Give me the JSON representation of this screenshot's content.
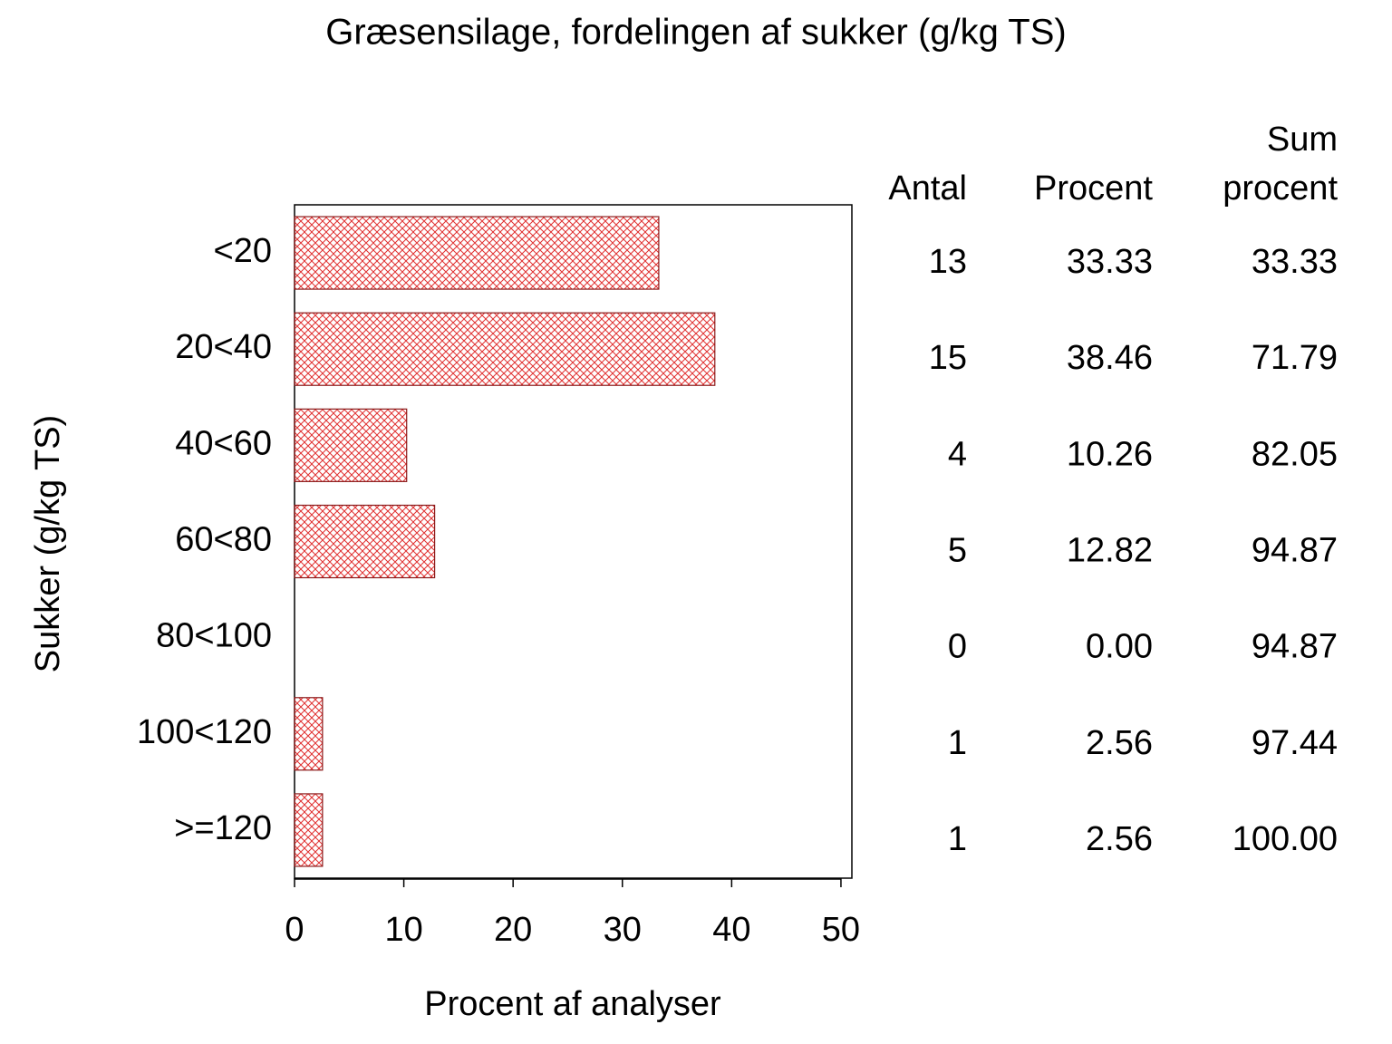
{
  "chart_data": {
    "type": "bar",
    "orientation": "horizontal",
    "title": "Græsensilage, fordelingen af sukker (g/kg TS)",
    "x_label": "Procent af analyser",
    "y_label": "Sukker (g/kg TS)",
    "categories": [
      "<20",
      "20<40",
      "40<60",
      "60<80",
      "80<100",
      "100<120",
      ">=120"
    ],
    "values": [
      33.33,
      38.46,
      10.26,
      12.82,
      0.0,
      2.56,
      2.56
    ],
    "value_labels": [
      "33.33",
      "38.46",
      "10.26",
      "12.82",
      "0.00",
      "2.56",
      "2.56"
    ],
    "color": "#e03030",
    "outline_color": "#8b1a1a",
    "xlim": [
      0,
      51
    ],
    "xticks": [
      0,
      10,
      20,
      30,
      40,
      50
    ],
    "table": {
      "count_header": "Antal",
      "counts": [
        13,
        15,
        4,
        5,
        0,
        1,
        1
      ],
      "percent_header": "Procent",
      "cumulative_header": [
        "Sum",
        "procent"
      ],
      "cumulative": [
        "33.33",
        "71.79",
        "82.05",
        "94.87",
        "94.87",
        "97.44",
        "100.00"
      ]
    }
  }
}
